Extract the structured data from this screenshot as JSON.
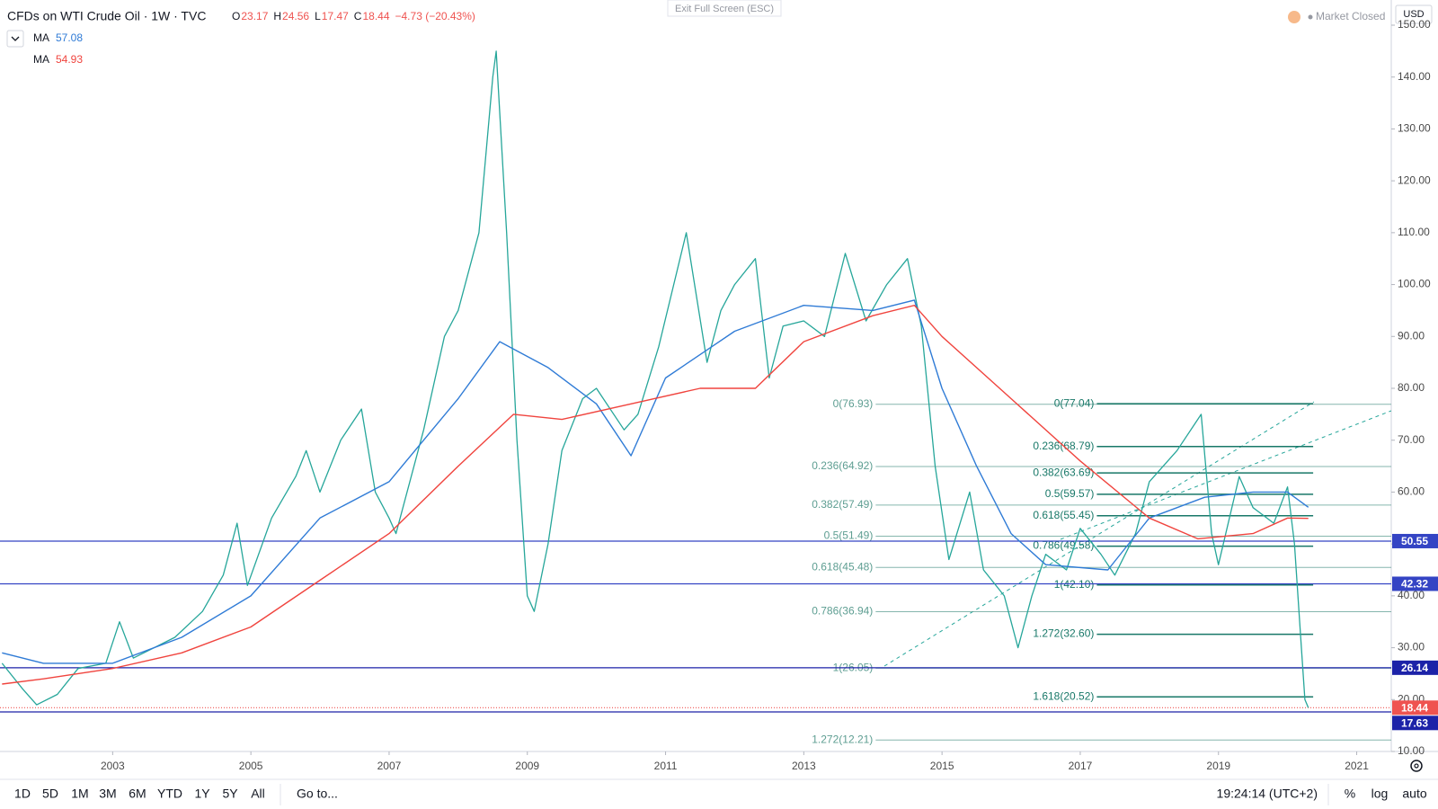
{
  "header": {
    "title": "CFDs on WTI Crude Oil · 1W · TVC",
    "ohlc": [
      {
        "k": "O",
        "v": "23.17"
      },
      {
        "k": "H",
        "v": "24.56"
      },
      {
        "k": "L",
        "v": "17.47"
      },
      {
        "k": "C",
        "v": "18.44"
      }
    ],
    "change": "−4.73 (−20.43%)",
    "exit": "Exit Full Screen (ESC)",
    "status": "Market Closed",
    "currency": "USD"
  },
  "toolbar": {
    "ranges": [
      "1D",
      "5D",
      "1M",
      "3M",
      "6M",
      "YTD",
      "1Y",
      "5Y",
      "All"
    ],
    "goto": "Go to...",
    "time": "19:24:14 (UTC+2)",
    "scale": [
      "%",
      "log",
      "auto"
    ]
  },
  "chart_data": {
    "type": "line",
    "xlim": [
      2001.37,
      2021.5
    ],
    "ylim": [
      10,
      150
    ],
    "xticks": [
      2003,
      2005,
      2007,
      2009,
      2011,
      2013,
      2015,
      2017,
      2019,
      2021
    ],
    "yticks": [
      {
        "value": 10,
        "label": "10.00"
      },
      {
        "value": 20,
        "label": "20.00"
      },
      {
        "value": 30,
        "label": "30.00"
      },
      {
        "value": 40,
        "label": "40.00"
      },
      {
        "value": 50,
        "label": "50.00"
      },
      {
        "value": 60,
        "label": "60.00"
      },
      {
        "value": 70,
        "label": "70.00"
      },
      {
        "value": 80,
        "label": "80.00"
      },
      {
        "value": 90,
        "label": "90.00"
      },
      {
        "value": 100,
        "label": "100.00"
      },
      {
        "value": 110,
        "label": "110.00"
      },
      {
        "value": 120,
        "label": "120.00"
      },
      {
        "value": 130,
        "label": "130.00"
      },
      {
        "value": 140,
        "label": "140.00"
      },
      {
        "value": 150,
        "label": "150.00"
      }
    ],
    "grid": false,
    "series": [
      {
        "color": "#26a69a",
        "x": [
          2001.4,
          2001.7,
          2001.9,
          2002.2,
          2002.5,
          2002.9,
          2003.1,
          2003.3,
          2003.6,
          2003.9,
          2004.3,
          2004.6,
          2004.8,
          2004.95,
          2005.3,
          2005.65,
          2005.8,
          2006.0,
          2006.3,
          2006.6,
          2006.8,
          2007.0,
          2007.1,
          2007.5,
          2007.8,
          2008.0,
          2008.3,
          2008.5,
          2008.55,
          2008.7,
          2008.85,
          2009.0,
          2009.1,
          2009.3,
          2009.5,
          2009.8,
          2010.0,
          2010.4,
          2010.6,
          2010.9,
          2011.3,
          2011.6,
          2011.8,
          2012.0,
          2012.3,
          2012.5,
          2012.7,
          2013.0,
          2013.3,
          2013.6,
          2013.9,
          2014.2,
          2014.5,
          2014.7,
          2014.9,
          2015.1,
          2015.4,
          2015.6,
          2015.9,
          2016.1,
          2016.3,
          2016.5,
          2016.8,
          2017.0,
          2017.3,
          2017.5,
          2017.8,
          2018.0,
          2018.4,
          2018.75,
          2018.9,
          2019.0,
          2019.3,
          2019.5,
          2019.8,
          2020.0,
          2020.1,
          2020.2,
          2020.25,
          2020.3
        ],
        "values": [
          27,
          22,
          19,
          21,
          26,
          27,
          35,
          28,
          30,
          32,
          37,
          44,
          54,
          42,
          55,
          63,
          68,
          60,
          70,
          76,
          60,
          55,
          52,
          72,
          90,
          95,
          110,
          140,
          145,
          110,
          70,
          40,
          37,
          50,
          68,
          78,
          80,
          72,
          75,
          88,
          110,
          85,
          95,
          100,
          105,
          82,
          92,
          93,
          90,
          106,
          93,
          100,
          105,
          92,
          65,
          47,
          60,
          45,
          40,
          30,
          40,
          48,
          45,
          53,
          48,
          44,
          52,
          62,
          68,
          75,
          52,
          46,
          63,
          57,
          54,
          61,
          50,
          30,
          20,
          18.44
        ]
      },
      {
        "name": "MA",
        "legend_value": 57.08,
        "color": "#2f7bd6",
        "x": [
          2001.4,
          2002,
          2003,
          2004,
          2005,
          2006,
          2007,
          2008,
          2008.6,
          2009.3,
          2010,
          2010.5,
          2011,
          2012,
          2013,
          2014,
          2014.6,
          2015,
          2015.5,
          2016,
          2016.5,
          2017.4,
          2018,
          2018.8,
          2019.5,
          2020,
          2020.3
        ],
        "values": [
          29,
          27,
          27,
          32,
          40,
          55,
          62,
          78,
          89,
          84,
          77,
          67,
          82,
          91,
          96,
          95,
          97,
          80,
          65,
          52,
          46,
          45,
          55,
          59,
          60,
          60,
          57.08
        ]
      },
      {
        "name": "MA",
        "legend_value": 54.93,
        "color": "#f0443e",
        "x": [
          2001.4,
          2002,
          2003,
          2004,
          2005,
          2006,
          2007,
          2008,
          2008.8,
          2009.5,
          2010.5,
          2011.5,
          2012.3,
          2013,
          2014,
          2014.6,
          2015,
          2016,
          2017,
          2018,
          2018.7,
          2019.5,
          2020,
          2020.3
        ],
        "values": [
          23,
          24,
          26,
          29,
          34,
          43,
          52,
          65,
          75,
          74,
          77,
          80,
          80,
          89,
          94,
          96,
          90,
          78,
          66,
          55,
          51,
          52,
          55,
          54.93
        ]
      }
    ],
    "fibs": [
      {
        "color": "#5e9e92",
        "start": 2014.04,
        "end": 2021.5,
        "levels": [
          {
            "label": "0(76.93)",
            "value": 76.93
          },
          {
            "label": "0.236(64.92)",
            "value": 64.92
          },
          {
            "label": "0.382(57.49)",
            "value": 57.49
          },
          {
            "label": "0.5(51.49)",
            "value": 51.49
          },
          {
            "label": "0.618(45.48)",
            "value": 45.48
          },
          {
            "label": "0.786(36.94)",
            "value": 36.94
          },
          {
            "label": "1(26.05)",
            "value": 26.05
          },
          {
            "label": "1.272(12.21)",
            "value": 12.21
          }
        ]
      },
      {
        "color": "#187868",
        "start": 2017.24,
        "end": 2020.37,
        "levels": [
          {
            "label": "0(77.04)",
            "value": 77.04
          },
          {
            "label": "0.236(68.79)",
            "value": 68.79
          },
          {
            "label": "0.382(63.69)",
            "value": 63.69
          },
          {
            "label": "0.5(59.57)",
            "value": 59.57
          },
          {
            "label": "0.618(55.45)",
            "value": 55.45
          },
          {
            "label": "0.786(49.58)",
            "value": 49.58
          },
          {
            "label": "1(42.10)",
            "value": 42.1
          },
          {
            "label": "1.272(32.60)",
            "value": 32.6
          },
          {
            "label": "1.618(20.52)",
            "value": 20.52
          }
        ]
      }
    ],
    "price_lines": [
      {
        "value": 50.55,
        "color": "#3444c4"
      },
      {
        "value": 42.32,
        "color": "#3444c4"
      },
      {
        "value": 26.14,
        "color": "#1c22a8"
      },
      {
        "value": 18.44,
        "color": "#ef5350",
        "dotted": true
      },
      {
        "value": 17.63,
        "color": "#1c22a8"
      }
    ]
  }
}
